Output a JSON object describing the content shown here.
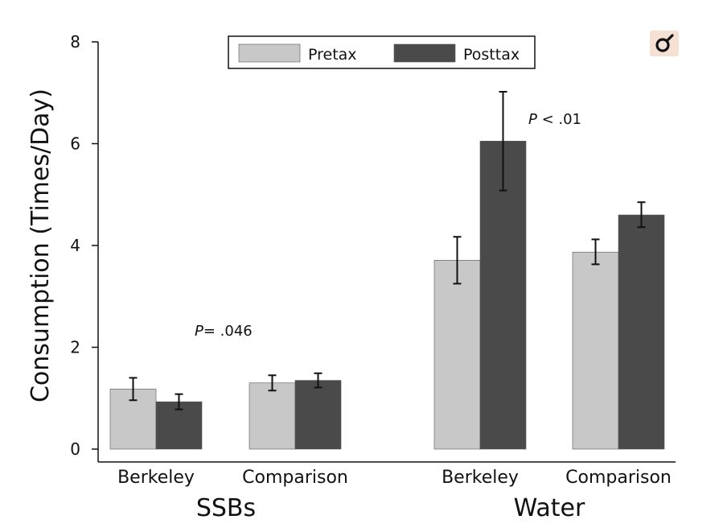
{
  "chart_data": {
    "type": "bar",
    "ylabel": "Consumption (Times/Day)",
    "ylim": [
      0,
      8
    ],
    "yticks": [
      0,
      2,
      4,
      6,
      8
    ],
    "grid": false,
    "legend_position": "top-center",
    "series": [
      {
        "name": "Pretax",
        "color": "#c8c8c8"
      },
      {
        "name": "Posttax",
        "color": "#4a4a4a"
      }
    ],
    "sections": [
      {
        "label": "SSBs",
        "groups": [
          {
            "label": "Berkeley",
            "values": [
              1.18,
              0.93
            ],
            "err_low": [
              0.96,
              0.78
            ],
            "err_high": [
              1.4,
              1.08
            ]
          },
          {
            "label": "Comparison",
            "values": [
              1.3,
              1.35
            ],
            "err_low": [
              1.15,
              1.21
            ],
            "err_high": [
              1.45,
              1.49
            ]
          }
        ],
        "annotation": {
          "p": "P",
          "text": "= .046"
        }
      },
      {
        "label": "Water",
        "groups": [
          {
            "label": "Berkeley",
            "values": [
              3.71,
              6.05
            ],
            "err_low": [
              3.25,
              5.08
            ],
            "err_high": [
              4.17,
              7.02
            ]
          },
          {
            "label": "Comparison",
            "values": [
              3.87,
              4.6
            ],
            "err_low": [
              3.63,
              4.36
            ],
            "err_high": [
              4.12,
              4.85
            ]
          }
        ],
        "annotation": {
          "p": "P",
          "text": " < .01"
        }
      }
    ]
  },
  "corner_icon": "magnifier-icon"
}
